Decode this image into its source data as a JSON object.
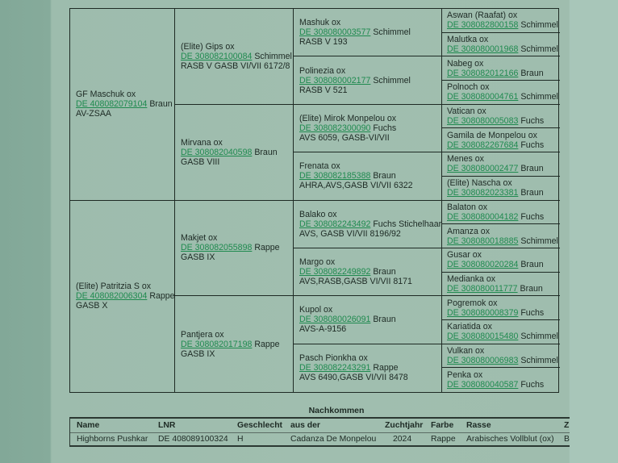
{
  "pedigree": {
    "gen1": [
      {
        "name": "GF Maschuk ox",
        "lnr": "DE 408082079104",
        "color": "Braun",
        "extra": "AV-ZSAA"
      },
      {
        "name": "(Elite) Patritzia S ox",
        "lnr": "DE 408082006304",
        "color": "Rappe",
        "extra": "GASB X"
      }
    ],
    "gen2": [
      {
        "name": "(Elite) Gips ox",
        "lnr": "DE 308082100084",
        "color": "Schimmel",
        "extra": "RASB V GASB VI/VII 6172/8"
      },
      {
        "name": "Mirvana ox",
        "lnr": "DE 308082040598",
        "color": "Braun",
        "extra": "GASB VIII"
      },
      {
        "name": "Makjet ox",
        "lnr": "DE 308082055898",
        "color": "Rappe",
        "extra": "GASB IX"
      },
      {
        "name": "Pantjera ox",
        "lnr": "DE 308082017198",
        "color": "Rappe",
        "extra": "GASB IX"
      }
    ],
    "gen3": [
      {
        "name": "Mashuk ox",
        "lnr": "DE 308080003577",
        "color": "Schimmel",
        "extra": "RASB V 193"
      },
      {
        "name": "Polinezia ox",
        "lnr": "DE 308080002177",
        "color": "Schimmel",
        "extra": "RASB V 521"
      },
      {
        "name": "(Elite) Mirok Monpelou ox",
        "lnr": "DE 308082300090",
        "color": "Fuchs",
        "extra": "AVS 6059, GASB-VI/VII"
      },
      {
        "name": "Frenata ox",
        "lnr": "DE 308082185388",
        "color": "Braun",
        "extra": "AHRA,AVS,GASB VI/VII 6322"
      },
      {
        "name": "Balako ox",
        "lnr": "DE 308082243492",
        "color": "Fuchs Stichelhaar",
        "extra": "AVS, GASB VI/VII 8196/92"
      },
      {
        "name": "Margo ox",
        "lnr": "DE 308082249892",
        "color": "Braun",
        "extra": "AVS,RASB,GASB VI/VII 8171"
      },
      {
        "name": "Kupol ox",
        "lnr": "DE 308080026091",
        "color": "Braun",
        "extra": "AVS-A-9156"
      },
      {
        "name": "Pasch Pionkha ox",
        "lnr": "DE 308082243291",
        "color": "Rappe",
        "extra": "AVS 6490,GASB VI/VII 8478"
      }
    ],
    "gen4": [
      {
        "name": "Aswan (Raafat) ox",
        "lnr": "DE 308082800158",
        "color": "Schimmel"
      },
      {
        "name": "Malutka ox",
        "lnr": "DE 308080001968",
        "color": "Schimmel"
      },
      {
        "name": "Nabeg ox",
        "lnr": "DE 308082012166",
        "color": "Braun"
      },
      {
        "name": "Polnoch ox",
        "lnr": "DE 308080004761",
        "color": "Schimmel"
      },
      {
        "name": "Vatican ox",
        "lnr": "DE 308080005083",
        "color": "Fuchs"
      },
      {
        "name": "Gamila de Monpelou ox",
        "lnr": "DE 308082267684",
        "color": "Fuchs"
      },
      {
        "name": "Menes ox",
        "lnr": "DE 308080002477",
        "color": "Braun"
      },
      {
        "name": "(Elite) Nascha ox",
        "lnr": "DE 308082023381",
        "color": "Braun"
      },
      {
        "name": "Balaton ox",
        "lnr": "DE 308080004182",
        "color": "Fuchs"
      },
      {
        "name": "Amanza ox",
        "lnr": "DE 308080018885",
        "color": "Schimmel"
      },
      {
        "name": "Gusar ox",
        "lnr": "DE 308080020284",
        "color": "Braun"
      },
      {
        "name": "Medianka ox",
        "lnr": "DE 308080011777",
        "color": "Braun"
      },
      {
        "name": "Pogremok ox",
        "lnr": "DE 308080008379",
        "color": "Fuchs"
      },
      {
        "name": "Kariatida ox",
        "lnr": "DE 308080015480",
        "color": "Schimmel"
      },
      {
        "name": "Vulkan ox",
        "lnr": "DE 308080006983",
        "color": "Schimmel"
      },
      {
        "name": "Penka ox",
        "lnr": "DE 308080040587",
        "color": "Fuchs"
      }
    ]
  },
  "offspring": {
    "title": "Nachkommen",
    "headers": [
      "Name",
      "LNR",
      "Geschlecht",
      "aus der",
      "Zuchtjahr",
      "Farbe",
      "Rasse",
      "Z"
    ],
    "rows": [
      [
        "Highborns Pushkar",
        "DE 408089100324",
        "H",
        "Cadanza De Monpelou",
        "2024",
        "Rappe",
        "Arabisches Vollblut (ox)",
        "B"
      ]
    ]
  },
  "colors": {
    "link": "#1f8a4f",
    "background": "#9fbdae"
  }
}
